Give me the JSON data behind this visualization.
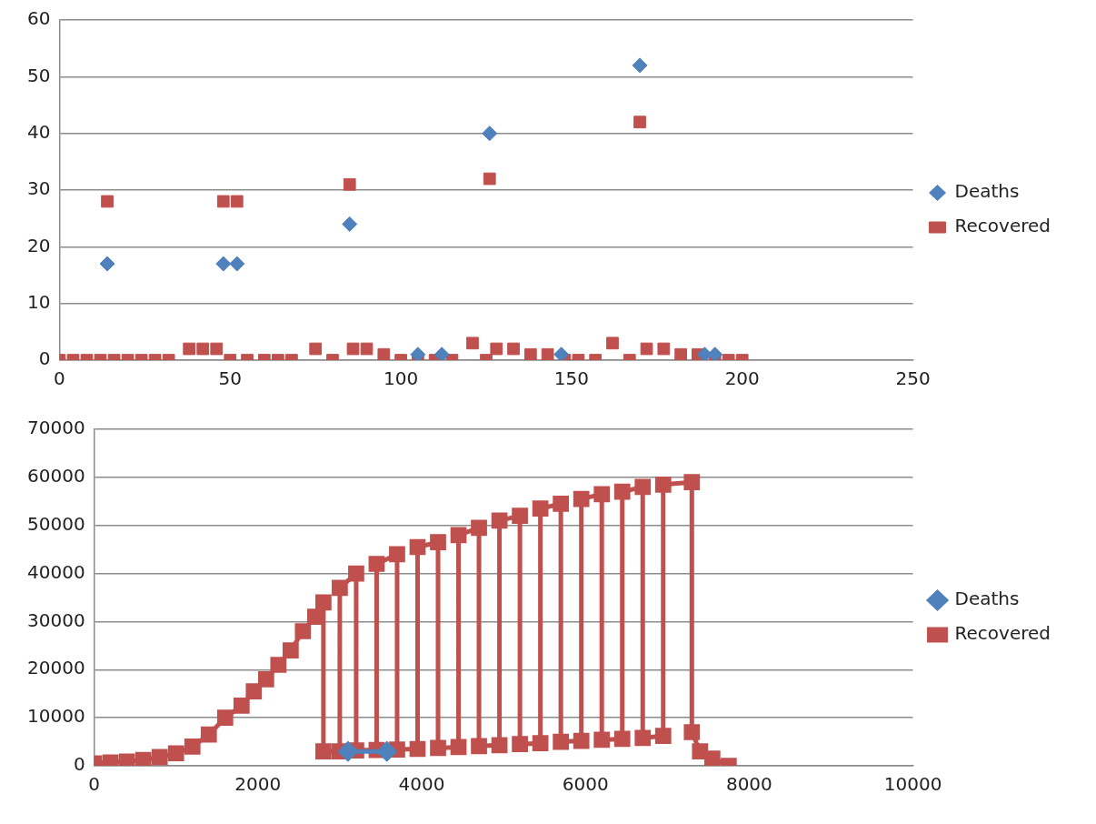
{
  "chart_data": [
    {
      "type": "scatter",
      "xlim": [
        0,
        250
      ],
      "xticks": [
        0,
        50,
        100,
        150,
        200,
        250
      ],
      "ylim": [
        0,
        60
      ],
      "yticks": [
        0,
        10,
        20,
        30,
        40,
        50,
        60
      ],
      "grid": "y",
      "legend": "right",
      "series": [
        {
          "name": "Deaths",
          "color": "#4f81bd",
          "marker": "diamond",
          "x": [
            14,
            48,
            52,
            85,
            105,
            112,
            126,
            147,
            170,
            189,
            192
          ],
          "values": [
            17,
            17,
            17,
            24,
            1,
            1,
            40,
            1,
            52,
            1,
            1
          ]
        },
        {
          "name": "Recovered",
          "color": "#c0504d",
          "marker": "square",
          "x": [
            14,
            48,
            52,
            85,
            126,
            170,
            0,
            4,
            8,
            12,
            16,
            20,
            24,
            28,
            32,
            38,
            42,
            46,
            50,
            55,
            60,
            64,
            68,
            75,
            80,
            86,
            90,
            95,
            100,
            105,
            110,
            115,
            121,
            125,
            128,
            133,
            138,
            143,
            148,
            152,
            157,
            162,
            167,
            172,
            177,
            182,
            187,
            192,
            196,
            200
          ],
          "values": [
            28,
            28,
            28,
            31,
            32,
            42,
            0,
            0,
            0,
            0,
            0,
            0,
            0,
            0,
            0,
            2,
            2,
            2,
            0,
            0,
            0,
            0,
            0,
            2,
            0,
            2,
            2,
            1,
            0,
            0,
            0,
            0,
            3,
            0,
            2,
            2,
            1,
            1,
            0,
            0,
            0,
            3,
            0,
            2,
            2,
            1,
            1,
            0,
            0,
            0
          ]
        }
      ]
    },
    {
      "type": "line",
      "xlim": [
        0,
        10000
      ],
      "xticks": [
        0,
        2000,
        4000,
        6000,
        8000,
        10000
      ],
      "ylim": [
        0,
        70000
      ],
      "yticks": [
        0,
        10000,
        20000,
        30000,
        40000,
        50000,
        60000,
        70000
      ],
      "grid": "y",
      "legend": "right",
      "line_style": "solid",
      "series": [
        {
          "name": "Deaths",
          "color": "#4f81bd",
          "marker": "diamond",
          "x": [
            3100,
            3575
          ],
          "values": [
            3000,
            3000
          ]
        },
        {
          "name": "Recovered",
          "color": "#c0504d",
          "marker": "square",
          "x": [
            0,
            200,
            400,
            600,
            800,
            1000,
            1200,
            1400,
            1600,
            1800,
            1950,
            2100,
            2250,
            2400,
            2550,
            2700,
            2800,
            2800,
            3000,
            3000,
            3200,
            3200,
            3450,
            3450,
            3700,
            3700,
            3950,
            3950,
            4200,
            4200,
            4450,
            4450,
            4700,
            4700,
            4950,
            4950,
            5200,
            5200,
            5450,
            5450,
            5700,
            5700,
            5950,
            5950,
            6200,
            6200,
            6450,
            6450,
            6700,
            6700,
            6950,
            6950,
            7300,
            7300,
            7400,
            7550,
            7750
          ],
          "values": [
            500,
            700,
            900,
            1200,
            1800,
            2600,
            4000,
            6500,
            10000,
            12500,
            15500,
            18000,
            21000,
            24000,
            28000,
            31000,
            34000,
            3000,
            3000,
            37000,
            40000,
            3200,
            3300,
            42000,
            44000,
            3400,
            3500,
            45500,
            46500,
            3700,
            3900,
            48000,
            49500,
            4100,
            4300,
            51000,
            52000,
            4500,
            4700,
            53500,
            54500,
            5000,
            5200,
            55500,
            56500,
            5400,
            5600,
            57000,
            58000,
            5800,
            6200,
            58500,
            59000,
            7000,
            3000,
            1500,
            0
          ]
        }
      ]
    }
  ]
}
